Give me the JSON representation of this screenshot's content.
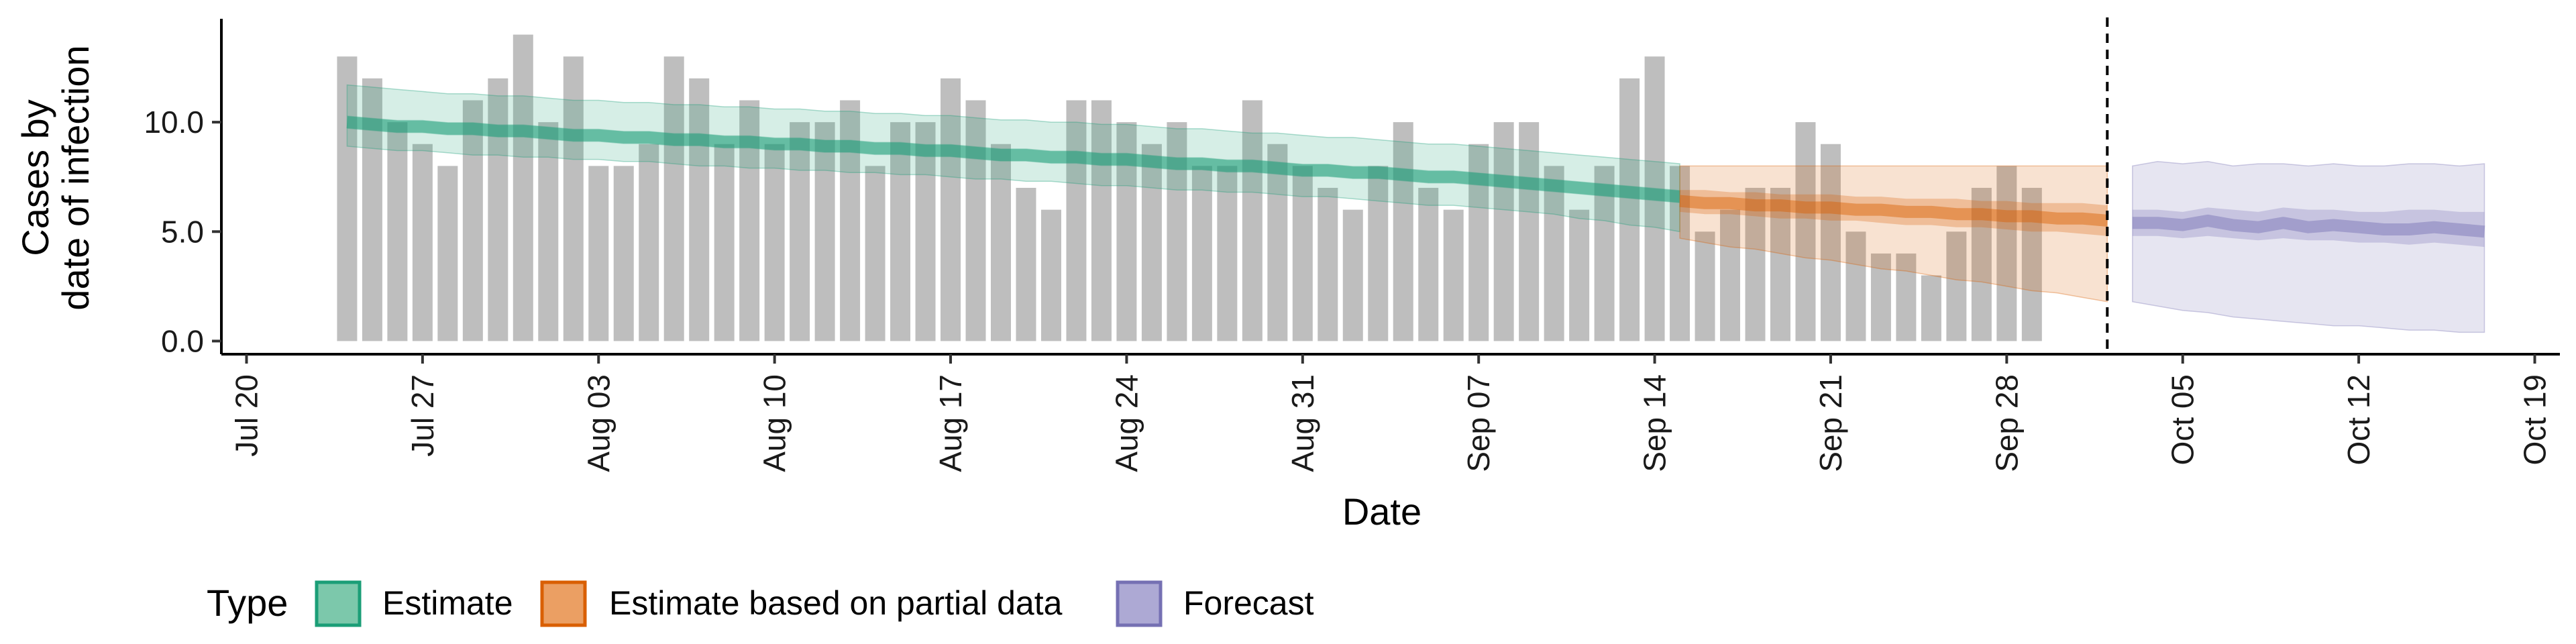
{
  "chart_data": {
    "type": "bar",
    "title": "",
    "xlabel": "Date",
    "ylabel_lines": [
      "Cases by",
      "date of infection"
    ],
    "y_ticks": [
      0,
      5,
      10
    ],
    "y_tick_labels": [
      "0.0",
      "5.0",
      "10.0"
    ],
    "ylim": [
      -0.6,
      14.6
    ],
    "x_range": [
      "2020-07-19",
      "2020-10-20"
    ],
    "x_ticks": [
      {
        "date": "2020-07-20",
        "label": "Jul 20"
      },
      {
        "date": "2020-07-27",
        "label": "Jul 27"
      },
      {
        "date": "2020-08-03",
        "label": "Aug 03"
      },
      {
        "date": "2020-08-10",
        "label": "Aug 10"
      },
      {
        "date": "2020-08-17",
        "label": "Aug 17"
      },
      {
        "date": "2020-08-24",
        "label": "Aug 24"
      },
      {
        "date": "2020-08-31",
        "label": "Aug 31"
      },
      {
        "date": "2020-09-07",
        "label": "Sep 07"
      },
      {
        "date": "2020-09-14",
        "label": "Sep 14"
      },
      {
        "date": "2020-09-21",
        "label": "Sep 21"
      },
      {
        "date": "2020-09-28",
        "label": "Sep 28"
      },
      {
        "date": "2020-10-05",
        "label": "Oct 05"
      },
      {
        "date": "2020-10-12",
        "label": "Oct 12"
      },
      {
        "date": "2020-10-19",
        "label": "Oct 19"
      }
    ],
    "bar_color": "#bebebe",
    "reference_line_date": "2020-10-02",
    "observed_cases": {
      "start_date": "2020-07-24",
      "values": [
        13,
        12,
        10,
        9,
        8,
        11,
        12,
        14,
        10,
        13,
        8,
        8,
        9,
        13,
        12,
        9,
        11,
        9,
        10,
        10,
        11,
        8,
        10,
        10,
        12,
        11,
        9,
        7,
        6,
        11,
        11,
        10,
        9,
        10,
        8,
        8,
        11,
        9,
        8,
        7,
        6,
        8,
        10,
        7,
        6,
        9,
        10,
        10,
        8,
        6,
        8,
        12,
        13,
        8,
        5,
        6,
        7,
        7,
        10,
        9,
        5,
        4,
        4,
        3,
        5,
        7,
        8,
        7
      ]
    },
    "series": [
      {
        "name": "Estimate",
        "color": "#1b9e77",
        "start_date": "2020-07-24",
        "median": [
          10.0,
          9.9,
          9.8,
          9.8,
          9.7,
          9.7,
          9.6,
          9.6,
          9.5,
          9.4,
          9.4,
          9.3,
          9.3,
          9.2,
          9.2,
          9.1,
          9.1,
          9.0,
          9.0,
          8.9,
          8.9,
          8.8,
          8.8,
          8.7,
          8.7,
          8.6,
          8.5,
          8.5,
          8.4,
          8.4,
          8.3,
          8.3,
          8.2,
          8.1,
          8.1,
          8.0,
          8.0,
          7.9,
          7.8,
          7.8,
          7.7,
          7.7,
          7.6,
          7.5,
          7.5,
          7.4,
          7.3,
          7.2,
          7.1,
          7.0,
          6.9,
          6.8,
          6.7,
          6.6
        ],
        "lower_50": [
          9.7,
          9.6,
          9.5,
          9.5,
          9.4,
          9.4,
          9.3,
          9.3,
          9.2,
          9.1,
          9.1,
          9.0,
          9.0,
          8.9,
          8.9,
          8.8,
          8.8,
          8.7,
          8.7,
          8.6,
          8.6,
          8.5,
          8.5,
          8.4,
          8.4,
          8.3,
          8.2,
          8.2,
          8.1,
          8.1,
          8.0,
          8.0,
          7.9,
          7.8,
          7.8,
          7.7,
          7.7,
          7.6,
          7.5,
          7.5,
          7.4,
          7.4,
          7.3,
          7.2,
          7.2,
          7.1,
          7.0,
          6.9,
          6.8,
          6.7,
          6.6,
          6.5,
          6.4,
          6.3
        ],
        "upper_50": [
          10.3,
          10.2,
          10.1,
          10.1,
          10.0,
          10.0,
          9.9,
          9.9,
          9.8,
          9.7,
          9.7,
          9.6,
          9.6,
          9.5,
          9.5,
          9.4,
          9.4,
          9.3,
          9.3,
          9.2,
          9.2,
          9.1,
          9.1,
          9.0,
          9.0,
          8.9,
          8.8,
          8.8,
          8.7,
          8.7,
          8.6,
          8.6,
          8.5,
          8.4,
          8.4,
          8.3,
          8.3,
          8.2,
          8.1,
          8.1,
          8.0,
          8.0,
          7.9,
          7.8,
          7.8,
          7.7,
          7.6,
          7.5,
          7.4,
          7.3,
          7.2,
          7.1,
          7.0,
          6.9
        ],
        "lower_90": [
          8.9,
          8.8,
          8.7,
          8.7,
          8.6,
          8.5,
          8.5,
          8.4,
          8.4,
          8.3,
          8.3,
          8.2,
          8.2,
          8.1,
          8.0,
          8.0,
          7.9,
          7.9,
          7.8,
          7.8,
          7.7,
          7.7,
          7.6,
          7.6,
          7.5,
          7.4,
          7.4,
          7.3,
          7.3,
          7.2,
          7.1,
          7.1,
          7.0,
          6.9,
          6.9,
          6.8,
          6.8,
          6.7,
          6.6,
          6.6,
          6.5,
          6.4,
          6.3,
          6.2,
          6.2,
          6.1,
          6.0,
          5.9,
          5.8,
          5.6,
          5.5,
          5.3,
          5.2,
          5.0
        ],
        "upper_90": [
          11.7,
          11.6,
          11.5,
          11.4,
          11.3,
          11.3,
          11.2,
          11.2,
          11.1,
          11.0,
          11.0,
          10.9,
          10.9,
          10.8,
          10.8,
          10.7,
          10.7,
          10.6,
          10.6,
          10.5,
          10.5,
          10.4,
          10.4,
          10.3,
          10.3,
          10.2,
          10.1,
          10.1,
          10.0,
          10.0,
          9.9,
          9.9,
          9.8,
          9.7,
          9.7,
          9.6,
          9.5,
          9.5,
          9.4,
          9.3,
          9.3,
          9.2,
          9.1,
          9.0,
          9.0,
          8.9,
          8.8,
          8.7,
          8.6,
          8.5,
          8.4,
          8.3,
          8.2,
          8.1
        ]
      },
      {
        "name": "Estimate based on partial data",
        "color": "#d95f02",
        "start_date": "2020-09-15",
        "median": [
          6.4,
          6.3,
          6.3,
          6.2,
          6.2,
          6.1,
          6.1,
          6.0,
          6.0,
          5.9,
          5.9,
          5.8,
          5.8,
          5.7,
          5.7,
          5.6,
          5.6,
          5.5
        ],
        "lower_50": [
          5.9,
          5.8,
          5.8,
          5.7,
          5.6,
          5.6,
          5.5,
          5.5,
          5.4,
          5.3,
          5.3,
          5.2,
          5.2,
          5.1,
          5.0,
          5.0,
          4.9,
          4.8
        ],
        "upper_50": [
          6.9,
          6.9,
          6.8,
          6.8,
          6.7,
          6.7,
          6.7,
          6.6,
          6.6,
          6.5,
          6.5,
          6.5,
          6.4,
          6.4,
          6.3,
          6.3,
          6.3,
          6.2
        ],
        "lower_90": [
          4.7,
          4.5,
          4.3,
          4.2,
          4.0,
          3.8,
          3.7,
          3.5,
          3.3,
          3.2,
          3.0,
          2.8,
          2.7,
          2.5,
          2.3,
          2.2,
          2.0,
          1.8
        ],
        "upper_90": [
          8.0,
          8.0,
          8.0,
          8.0,
          8.0,
          8.0,
          8.0,
          8.0,
          8.0,
          8.0,
          8.0,
          8.0,
          8.0,
          8.0,
          8.0,
          8.0,
          8.0,
          8.0
        ]
      },
      {
        "name": "Forecast",
        "color": "#7570b3",
        "start_date": "2020-10-03",
        "median": [
          5.4,
          5.4,
          5.3,
          5.5,
          5.3,
          5.2,
          5.4,
          5.2,
          5.3,
          5.2,
          5.1,
          5.1,
          5.2,
          5.1,
          5.0
        ],
        "lower_50": [
          4.8,
          4.8,
          4.7,
          4.8,
          4.7,
          4.6,
          4.7,
          4.6,
          4.6,
          4.5,
          4.5,
          4.4,
          4.5,
          4.4,
          4.3
        ],
        "upper_50": [
          6.0,
          6.0,
          5.9,
          6.1,
          6.0,
          5.9,
          6.1,
          6.0,
          6.0,
          5.9,
          5.9,
          6.0,
          6.0,
          5.9,
          5.9
        ],
        "lower_90": [
          1.8,
          1.6,
          1.4,
          1.3,
          1.1,
          1.0,
          0.9,
          0.8,
          0.7,
          0.7,
          0.6,
          0.5,
          0.5,
          0.4,
          0.4
        ],
        "upper_90": [
          8.0,
          8.2,
          8.1,
          8.2,
          8.0,
          8.1,
          8.1,
          8.0,
          8.1,
          8.0,
          8.0,
          8.1,
          8.1,
          8.0,
          8.1
        ]
      }
    ],
    "legend": {
      "title": "Type",
      "position": "bottom-left",
      "items": [
        {
          "label": "Estimate",
          "fill": "#7cc8ab",
          "stroke": "#1b9e77"
        },
        {
          "label": "Estimate based on partial data",
          "fill": "#eb9f63",
          "stroke": "#d95f02"
        },
        {
          "label": "Forecast",
          "fill": "#ada9d4",
          "stroke": "#7570b3"
        }
      ]
    },
    "grid": false
  }
}
